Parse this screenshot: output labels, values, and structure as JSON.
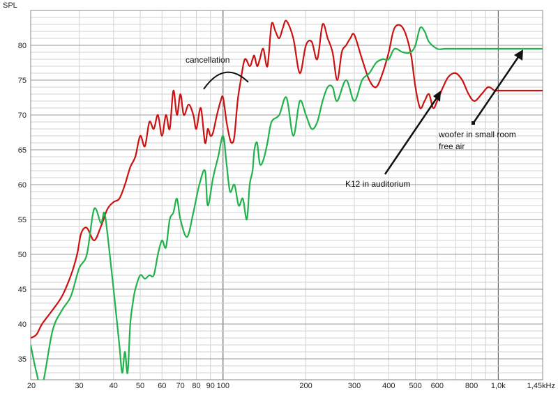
{
  "chart_data": {
    "type": "line",
    "ylabel": "SPL",
    "xscale": "log",
    "xlim": [
      20,
      1450
    ],
    "ylim": [
      32,
      85
    ],
    "grid": true,
    "x_ticks": [
      {
        "value": 20,
        "label": "20"
      },
      {
        "value": 30,
        "label": "30"
      },
      {
        "value": 40,
        "label": "40"
      },
      {
        "value": 50,
        "label": "50"
      },
      {
        "value": 60,
        "label": "60"
      },
      {
        "value": 70,
        "label": "70"
      },
      {
        "value": 80,
        "label": "80"
      },
      {
        "value": 90,
        "label": "90"
      },
      {
        "value": 100,
        "label": "100"
      },
      {
        "value": 200,
        "label": "200"
      },
      {
        "value": 300,
        "label": "300"
      },
      {
        "value": 400,
        "label": "400"
      },
      {
        "value": 500,
        "label": "500"
      },
      {
        "value": 600,
        "label": "600"
      },
      {
        "value": 800,
        "label": "800"
      },
      {
        "value": 1000,
        "label": "1,0k"
      },
      {
        "value": 1450,
        "label": "1,45kHz"
      }
    ],
    "y_ticks": [
      35,
      40,
      45,
      50,
      55,
      60,
      65,
      70,
      75,
      80
    ],
    "series": [
      {
        "color": "#cc1111",
        "x": [
          20,
          21,
          22,
          24,
          26,
          28,
          29.5,
          30.5,
          32,
          34,
          36,
          38,
          40,
          42,
          44,
          46,
          48,
          50,
          52,
          54,
          56,
          58,
          60,
          62,
          64,
          66,
          68,
          70,
          72,
          75,
          78,
          80,
          83,
          86,
          88,
          90,
          92,
          95,
          98,
          100,
          103,
          106,
          108,
          110,
          113,
          116,
          120,
          125,
          128,
          130,
          133,
          136,
          140,
          145,
          150,
          155,
          160,
          165,
          170,
          180,
          190,
          200,
          210,
          220,
          230,
          240,
          250,
          260,
          270,
          280,
          290,
          300,
          320,
          340,
          360,
          380,
          400,
          420,
          450,
          480,
          500,
          520,
          540,
          560,
          580,
          600,
          630,
          660,
          700,
          740,
          780,
          820,
          870,
          920,
          970,
          1000,
          1050,
          1100,
          1150,
          1200,
          1250,
          1300,
          1350,
          1400,
          1450
        ],
        "values": [
          38,
          38.5,
          40,
          42,
          44,
          47,
          50,
          53,
          53.8,
          52,
          54,
          56.5,
          57.5,
          58,
          60,
          62.5,
          64,
          67,
          65.5,
          69,
          68,
          70,
          67,
          70,
          68,
          73.5,
          70,
          73,
          70,
          71.5,
          70,
          68,
          71,
          66,
          68,
          67,
          67.5,
          70,
          72,
          72.5,
          69,
          66.5,
          66,
          67,
          72,
          75,
          78,
          77,
          78,
          78.5,
          77,
          78,
          79.5,
          77,
          83,
          82,
          81,
          82.5,
          83.5,
          81,
          76,
          80,
          80.5,
          78,
          83,
          81,
          79,
          75,
          79,
          80,
          81,
          81.5,
          78,
          75,
          74,
          76,
          79,
          82.5,
          82.5,
          79,
          74,
          71,
          72,
          73,
          71,
          72,
          74,
          75.5,
          76,
          75,
          73,
          72,
          73,
          74,
          73.5,
          73.5,
          73.5,
          73.5,
          73.5,
          73.5,
          73.5,
          73.5,
          73.5,
          73.5,
          73.5
        ]
      },
      {
        "color": "#22b24c",
        "x": [
          20,
          21,
          22,
          24,
          26,
          28,
          30,
          32,
          34,
          36,
          37,
          38,
          40,
          42,
          43,
          44,
          45,
          46,
          47,
          48,
          50,
          52,
          54,
          56,
          58,
          60,
          62,
          64,
          66,
          68,
          70,
          74,
          78,
          82,
          86,
          88,
          92,
          96,
          100,
          103,
          106,
          110,
          114,
          118,
          122,
          125,
          128,
          130,
          133,
          136,
          140,
          145,
          150,
          160,
          170,
          180,
          190,
          200,
          210,
          220,
          230,
          240,
          250,
          260,
          280,
          300,
          320,
          340,
          360,
          380,
          400,
          420,
          450,
          480,
          500,
          520,
          540,
          560,
          600,
          640,
          680,
          720,
          760,
          800,
          850,
          900,
          950,
          1000,
          1050,
          1100,
          1150,
          1200,
          1250,
          1300,
          1350,
          1400,
          1450
        ],
        "values": [
          37,
          33,
          31,
          39,
          42,
          44,
          48,
          50,
          56.5,
          54.5,
          56,
          53,
          45,
          37,
          33,
          36,
          33,
          40,
          43,
          45,
          47,
          46.5,
          47,
          47,
          50,
          52,
          51,
          55,
          56,
          58,
          55,
          52.5,
          56,
          60,
          62,
          57,
          61,
          64,
          67,
          63,
          59,
          60,
          57,
          58,
          55,
          60,
          62,
          65,
          66,
          63,
          63.5,
          66,
          69,
          70,
          72.5,
          67,
          72,
          70,
          68,
          69,
          72,
          74,
          74,
          72,
          75,
          72,
          75,
          76,
          77.5,
          78,
          78,
          79.5,
          79,
          79,
          80,
          82.5,
          82,
          80.5,
          79.5,
          79.5,
          79.5,
          79.5,
          79.5,
          79.5,
          79.5,
          79.5,
          79.5,
          79.5,
          79.5,
          79.5,
          79.5,
          79.5,
          79.5,
          79.5,
          79.5,
          79.5,
          79.5
        ]
      }
    ],
    "annotations": [
      {
        "text": "cancellation"
      },
      {
        "text": "K12 in auditorium"
      },
      {
        "text": "woofer in small room"
      },
      {
        "text": "free air"
      }
    ]
  },
  "colors": {
    "grid_major": "#9a9a9a",
    "grid_minor": "#d2d2d2",
    "background": "#ffffff"
  }
}
